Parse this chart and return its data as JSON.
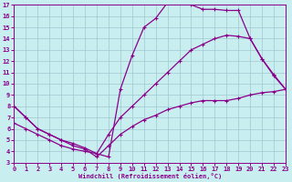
{
  "xlabel": "Windchill (Refroidissement éolien,°C)",
  "bg_color": "#c8eef0",
  "line_color": "#8b008b",
  "xlim": [
    0,
    23
  ],
  "ylim": [
    3,
    17
  ],
  "xticks": [
    0,
    1,
    2,
    3,
    4,
    5,
    6,
    7,
    8,
    9,
    10,
    11,
    12,
    13,
    14,
    15,
    16,
    17,
    18,
    19,
    20,
    21,
    22,
    23
  ],
  "yticks": [
    3,
    4,
    5,
    6,
    7,
    8,
    9,
    10,
    11,
    12,
    13,
    14,
    15,
    16,
    17
  ],
  "grid_color": "#a0c8d0",
  "curve1_x": [
    0,
    1,
    2,
    3,
    4,
    5,
    6,
    7,
    8,
    9,
    10,
    11,
    12,
    13,
    14,
    15,
    16,
    17,
    18,
    19,
    20,
    21,
    22,
    23
  ],
  "curve1_y": [
    8.0,
    7.0,
    6.0,
    5.5,
    5.0,
    4.7,
    4.3,
    3.8,
    3.5,
    9.5,
    12.5,
    15.0,
    15.8,
    17.2,
    17.2,
    17.0,
    16.6,
    16.6,
    16.5,
    16.5,
    14.0,
    12.2,
    10.8,
    9.5
  ],
  "curve2_x": [
    0,
    1,
    2,
    3,
    4,
    5,
    6,
    7,
    8,
    9,
    10,
    11,
    12,
    13,
    14,
    15,
    16,
    17,
    18,
    19,
    20,
    21,
    22,
    23
  ],
  "curve2_y": [
    6.5,
    6.0,
    5.5,
    5.0,
    4.5,
    4.2,
    4.0,
    3.8,
    5.5,
    7.0,
    8.0,
    9.0,
    10.0,
    11.0,
    12.0,
    13.0,
    13.5,
    14.0,
    14.3,
    14.2,
    14.0,
    12.2,
    10.7,
    9.5
  ],
  "curve3_x": [
    0,
    1,
    2,
    3,
    4,
    5,
    6,
    7,
    8,
    9,
    10,
    11,
    12,
    13,
    14,
    15,
    16,
    17,
    18,
    19,
    20,
    21,
    22,
    23
  ],
  "curve3_y": [
    8.0,
    7.0,
    6.0,
    5.5,
    5.0,
    4.5,
    4.2,
    3.5,
    4.5,
    5.5,
    6.2,
    6.8,
    7.2,
    7.7,
    8.0,
    8.3,
    8.5,
    8.5,
    8.5,
    8.7,
    9.0,
    9.2,
    9.3,
    9.5
  ]
}
